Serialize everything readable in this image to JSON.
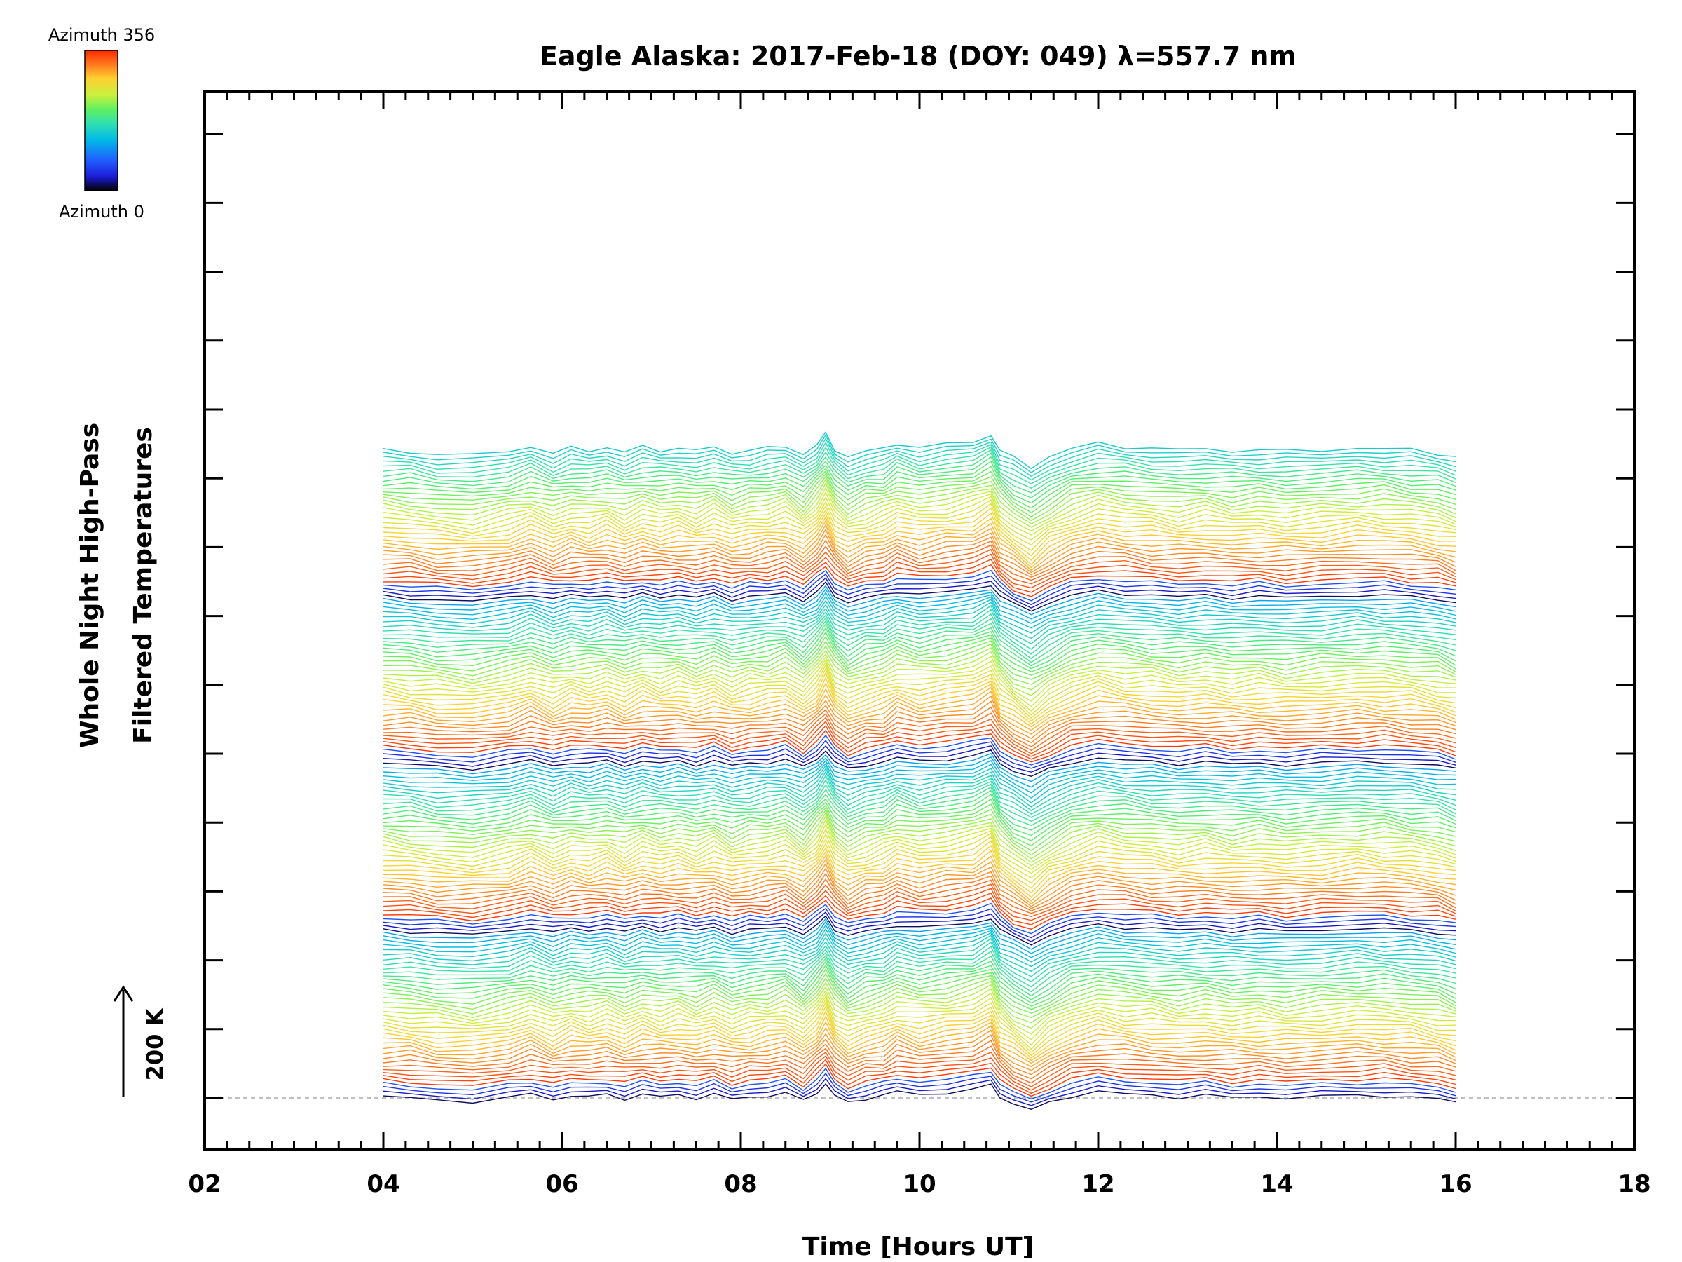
{
  "chart_data": {
    "type": "line",
    "title": "Eagle Alaska: 2017-Feb-18 (DOY: 049) λ=557.7 nm",
    "xlabel": "Time [Hours UT]",
    "ylabel_line1": "Whole Night High-Pass",
    "ylabel_line2": "Filtered Temperatures",
    "xlim": [
      2,
      18
    ],
    "x_ticks": [
      "02",
      "04",
      "06",
      "08",
      "10",
      "12",
      "14",
      "16",
      "18"
    ],
    "x_tick_values": [
      2,
      4,
      6,
      8,
      10,
      12,
      14,
      16,
      18
    ],
    "scale_bar": "200 K",
    "colorbar": {
      "top_label": "Azimuth 356",
      "bottom_label": "Azimuth 0"
    },
    "baseline_dashed": true,
    "data_time_range_hours": [
      4,
      16
    ],
    "profile": {
      "x": [
        4.0,
        4.3,
        4.6,
        5.0,
        5.4,
        5.65,
        5.9,
        6.1,
        6.3,
        6.5,
        6.7,
        6.9,
        7.1,
        7.3,
        7.5,
        7.7,
        7.9,
        8.1,
        8.3,
        8.5,
        8.7,
        8.85,
        8.95,
        9.05,
        9.2,
        9.4,
        9.6,
        9.75,
        10.0,
        10.3,
        10.6,
        10.8,
        10.9,
        11.05,
        11.25,
        11.45,
        11.7,
        12.0,
        12.3,
        12.6,
        12.9,
        13.2,
        13.5,
        13.8,
        14.1,
        14.5,
        14.9,
        15.2,
        15.5,
        15.8,
        16.0
      ],
      "values": [
        0.05,
        0.0,
        -0.1,
        -0.15,
        0.0,
        0.18,
        -0.05,
        0.1,
        0.05,
        0.14,
        -0.02,
        0.15,
        0.06,
        0.12,
        0.02,
        0.15,
        -0.05,
        0.05,
        0.1,
        0.2,
        -0.1,
        0.25,
        0.62,
        0.1,
        -0.2,
        0.0,
        0.1,
        0.3,
        0.15,
        0.25,
        0.35,
        0.6,
        0.05,
        -0.25,
        -0.55,
        -0.2,
        0.1,
        0.28,
        0.18,
        0.12,
        0.05,
        0.1,
        0.02,
        0.06,
        0.0,
        0.06,
        0.12,
        0.1,
        0.04,
        -0.05,
        -0.2
      ]
    },
    "series": {
      "count": 160,
      "azimuth_range": [
        0,
        356
      ],
      "order": "stacked upward, one trace per azimuth sample"
    }
  },
  "colors": {
    "background": "#ffffff",
    "axes": "#000000",
    "baseline": "#aaaaaa",
    "colormap": [
      "#000000",
      "#1c1cd8",
      "#2060ff",
      "#00b8e8",
      "#30e0b0",
      "#60f060",
      "#c8f040",
      "#ffd030",
      "#ff7a20",
      "#ff2a00"
    ]
  }
}
